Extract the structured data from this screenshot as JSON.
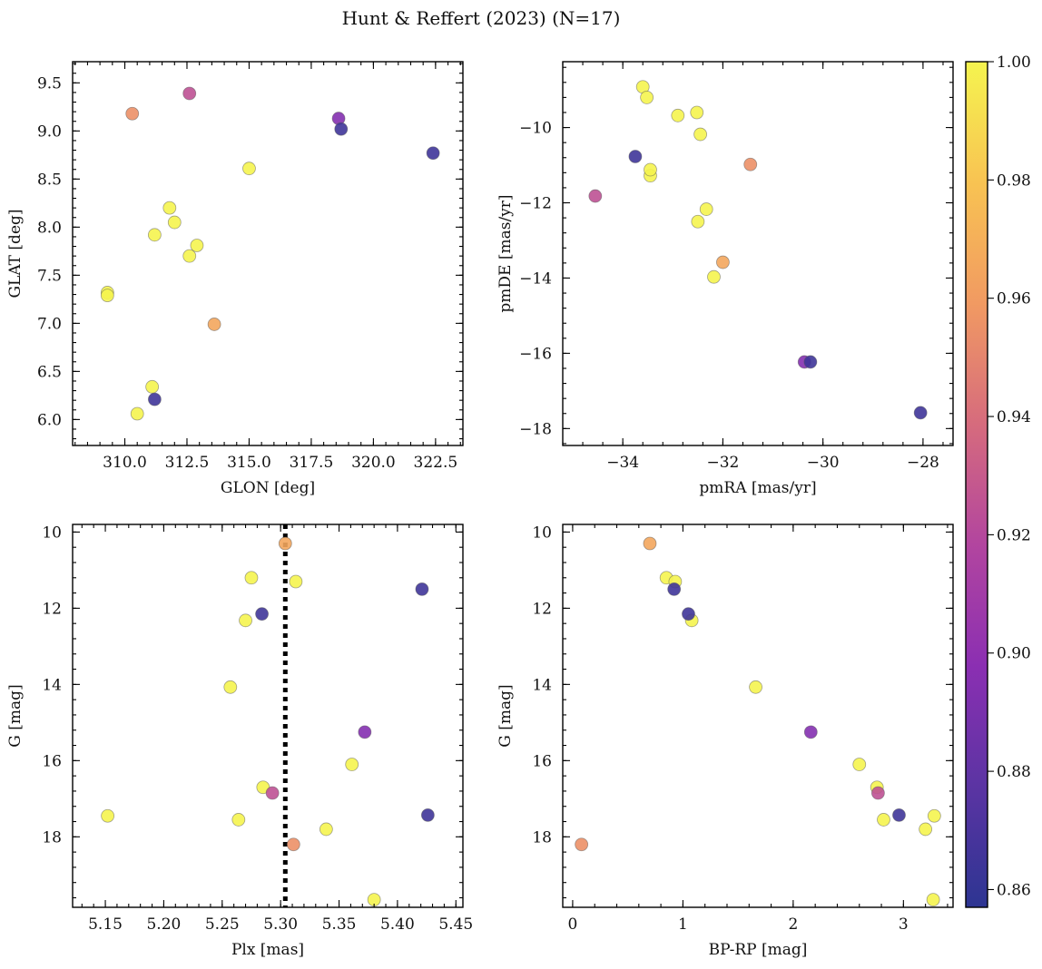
{
  "chart_data": {
    "suptitle": "Hunt & Reffert (2023) (N=17)",
    "colorbar": {
      "range": [
        0.857,
        1.0
      ],
      "ticks": [
        0.86,
        0.88,
        0.9,
        0.92,
        0.94,
        0.96,
        0.98,
        1.0
      ],
      "tick_labels": [
        "0.86",
        "0.88",
        "0.90",
        "0.92",
        "0.94",
        "0.96",
        "0.98",
        "1.00"
      ],
      "colormap": "plasma",
      "stops": [
        "#2d3592",
        "#5b34a3",
        "#8b2fb2",
        "#b2459f",
        "#d66b7d",
        "#f19a62",
        "#f8c352",
        "#f5f44f"
      ]
    },
    "stars": [
      {
        "glon": 309.3,
        "glat": 7.32,
        "pmra": -33.45,
        "pmde": -11.28,
        "plx": 5.152,
        "gmag": 17.45,
        "bprp": 3.28,
        "prob": 1.0
      },
      {
        "glon": 309.3,
        "glat": 7.29,
        "pmra": -33.45,
        "pmde": -11.12,
        "plx": 5.38,
        "gmag": 19.65,
        "bprp": 3.27,
        "prob": 1.0
      },
      {
        "glon": 310.3,
        "glat": 9.18,
        "pmra": -31.45,
        "pmde": -10.98,
        "plx": 5.311,
        "gmag": 18.2,
        "bprp": 0.08,
        "prob": 0.955
      },
      {
        "glon": 310.5,
        "glat": 6.06,
        "pmra": -32.9,
        "pmde": -9.68,
        "plx": 5.264,
        "gmag": 17.55,
        "bprp": 2.82,
        "prob": 1.0
      },
      {
        "glon": 311.1,
        "glat": 6.34,
        "pmra": -32.5,
        "pmde": -12.5,
        "plx": 5.285,
        "gmag": 16.7,
        "bprp": 2.76,
        "prob": 1.0
      },
      {
        "glon": 311.2,
        "glat": 6.21,
        "pmra": -33.75,
        "pmde": -10.77,
        "plx": 5.284,
        "gmag": 12.15,
        "bprp": 1.05,
        "prob": 0.865
      },
      {
        "glon": 311.2,
        "glat": 7.92,
        "pmra": -33.6,
        "pmde": -8.92,
        "plx": 5.275,
        "gmag": 11.2,
        "bprp": 0.85,
        "prob": 1.0
      },
      {
        "glon": 312.6,
        "glat": 7.7,
        "pmra": -32.52,
        "pmde": -9.6,
        "plx": 5.339,
        "gmag": 17.8,
        "bprp": 3.2,
        "prob": 1.0
      },
      {
        "glon": 312.6,
        "glat": 9.39,
        "pmra": -34.55,
        "pmde": -11.82,
        "plx": 5.293,
        "gmag": 16.85,
        "bprp": 2.77,
        "prob": 0.925
      },
      {
        "glon": 312.9,
        "glat": 7.81,
        "pmra": -33.52,
        "pmde": -9.2,
        "plx": 5.313,
        "gmag": 11.3,
        "bprp": 0.93,
        "prob": 1.0
      },
      {
        "glon": 313.6,
        "glat": 6.99,
        "pmra": -32.0,
        "pmde": -13.58,
        "plx": 5.304,
        "gmag": 10.3,
        "bprp": 0.7,
        "prob": 0.965
      },
      {
        "glon": 315.0,
        "glat": 8.61,
        "pmra": -32.18,
        "pmde": -13.97,
        "plx": 5.361,
        "gmag": 16.1,
        "bprp": 2.6,
        "prob": 1.0
      },
      {
        "glon": 318.6,
        "glat": 9.13,
        "pmra": -30.37,
        "pmde": -16.23,
        "plx": 5.372,
        "gmag": 15.25,
        "bprp": 2.16,
        "prob": 0.895
      },
      {
        "glon": 318.7,
        "glat": 9.02,
        "pmra": -30.25,
        "pmde": -16.23,
        "plx": 5.421,
        "gmag": 11.5,
        "bprp": 0.92,
        "prob": 0.865
      },
      {
        "glon": 322.4,
        "glat": 8.77,
        "pmra": -28.05,
        "pmde": -17.58,
        "plx": 5.426,
        "gmag": 17.43,
        "bprp": 2.96,
        "prob": 0.865
      },
      {
        "glon": 311.8,
        "glat": 8.2,
        "pmra": -32.45,
        "pmde": -10.18,
        "plx": 5.257,
        "gmag": 14.07,
        "bprp": 1.66,
        "prob": 1.0
      },
      {
        "glon": 312.0,
        "glat": 8.05,
        "pmra": -32.33,
        "pmde": -12.17,
        "plx": 5.27,
        "gmag": 12.32,
        "bprp": 1.08,
        "prob": 1.0
      }
    ],
    "panels": [
      {
        "id": "glon-glat",
        "type": "scatter",
        "x_field": "glon",
        "y_field": "glat",
        "xlabel": "GLON [deg]",
        "ylabel": "GLAT [deg]",
        "xlim": [
          307.9,
          323.6
        ],
        "ylim": [
          5.73,
          9.72
        ],
        "xticks": [
          310.0,
          312.5,
          315.0,
          317.5,
          320.0,
          322.5
        ],
        "xtick_labels": [
          "310.0",
          "312.5",
          "315.0",
          "317.5",
          "320.0",
          "322.5"
        ],
        "yticks": [
          6.0,
          6.5,
          7.0,
          7.5,
          8.0,
          8.5,
          9.0,
          9.5
        ],
        "ytick_labels": [
          "6.0",
          "6.5",
          "7.0",
          "7.5",
          "8.0",
          "8.5",
          "9.0",
          "9.5"
        ],
        "x_minor": 0.5,
        "y_minor": 0.1,
        "y_inverted": false
      },
      {
        "id": "pmra-pmde",
        "type": "scatter",
        "x_field": "pmra",
        "y_field": "pmde",
        "xlabel": "pmRA [mas/yr]",
        "ylabel": "pmDE [mas/yr]",
        "xlim": [
          -35.2,
          -27.4
        ],
        "ylim": [
          -18.45,
          -8.25
        ],
        "xticks": [
          -34,
          -32,
          -30,
          -28
        ],
        "xtick_labels": [
          "−34",
          "−32",
          "−30",
          "−28"
        ],
        "yticks": [
          -18,
          -16,
          -14,
          -12,
          -10
        ],
        "ytick_labels": [
          "−18",
          "−16",
          "−14",
          "−12",
          "−10"
        ],
        "x_minor": 0.4,
        "y_minor": 0.4,
        "y_inverted": false
      },
      {
        "id": "plx-g",
        "type": "scatter",
        "x_field": "plx",
        "y_field": "gmag",
        "xlabel": "Plx [mas]",
        "ylabel": "G [mag]",
        "xlim": [
          5.122,
          5.456
        ],
        "ylim": [
          9.8,
          19.85
        ],
        "xticks": [
          5.15,
          5.2,
          5.25,
          5.3,
          5.35,
          5.4,
          5.45
        ],
        "xtick_labels": [
          "5.15",
          "5.20",
          "5.25",
          "5.30",
          "5.35",
          "5.40",
          "5.45"
        ],
        "yticks": [
          10,
          12,
          14,
          16,
          18
        ],
        "ytick_labels": [
          "10",
          "12",
          "14",
          "16",
          "18"
        ],
        "x_minor": 0.01,
        "y_minor": 0.4,
        "y_inverted": true,
        "vline": 5.304
      },
      {
        "id": "bprp-g",
        "type": "scatter",
        "x_field": "bprp",
        "y_field": "gmag",
        "xlabel": "BP-RP [mag]",
        "ylabel": "G [mag]",
        "xlim": [
          -0.09,
          3.45
        ],
        "ylim": [
          9.8,
          19.85
        ],
        "xticks": [
          0,
          1,
          2,
          3
        ],
        "xtick_labels": [
          "0",
          "1",
          "2",
          "3"
        ],
        "yticks": [
          10,
          12,
          14,
          16,
          18
        ],
        "ytick_labels": [
          "10",
          "12",
          "14",
          "16",
          "18"
        ],
        "x_minor": 0.2,
        "y_minor": 0.4,
        "y_inverted": true
      }
    ]
  }
}
